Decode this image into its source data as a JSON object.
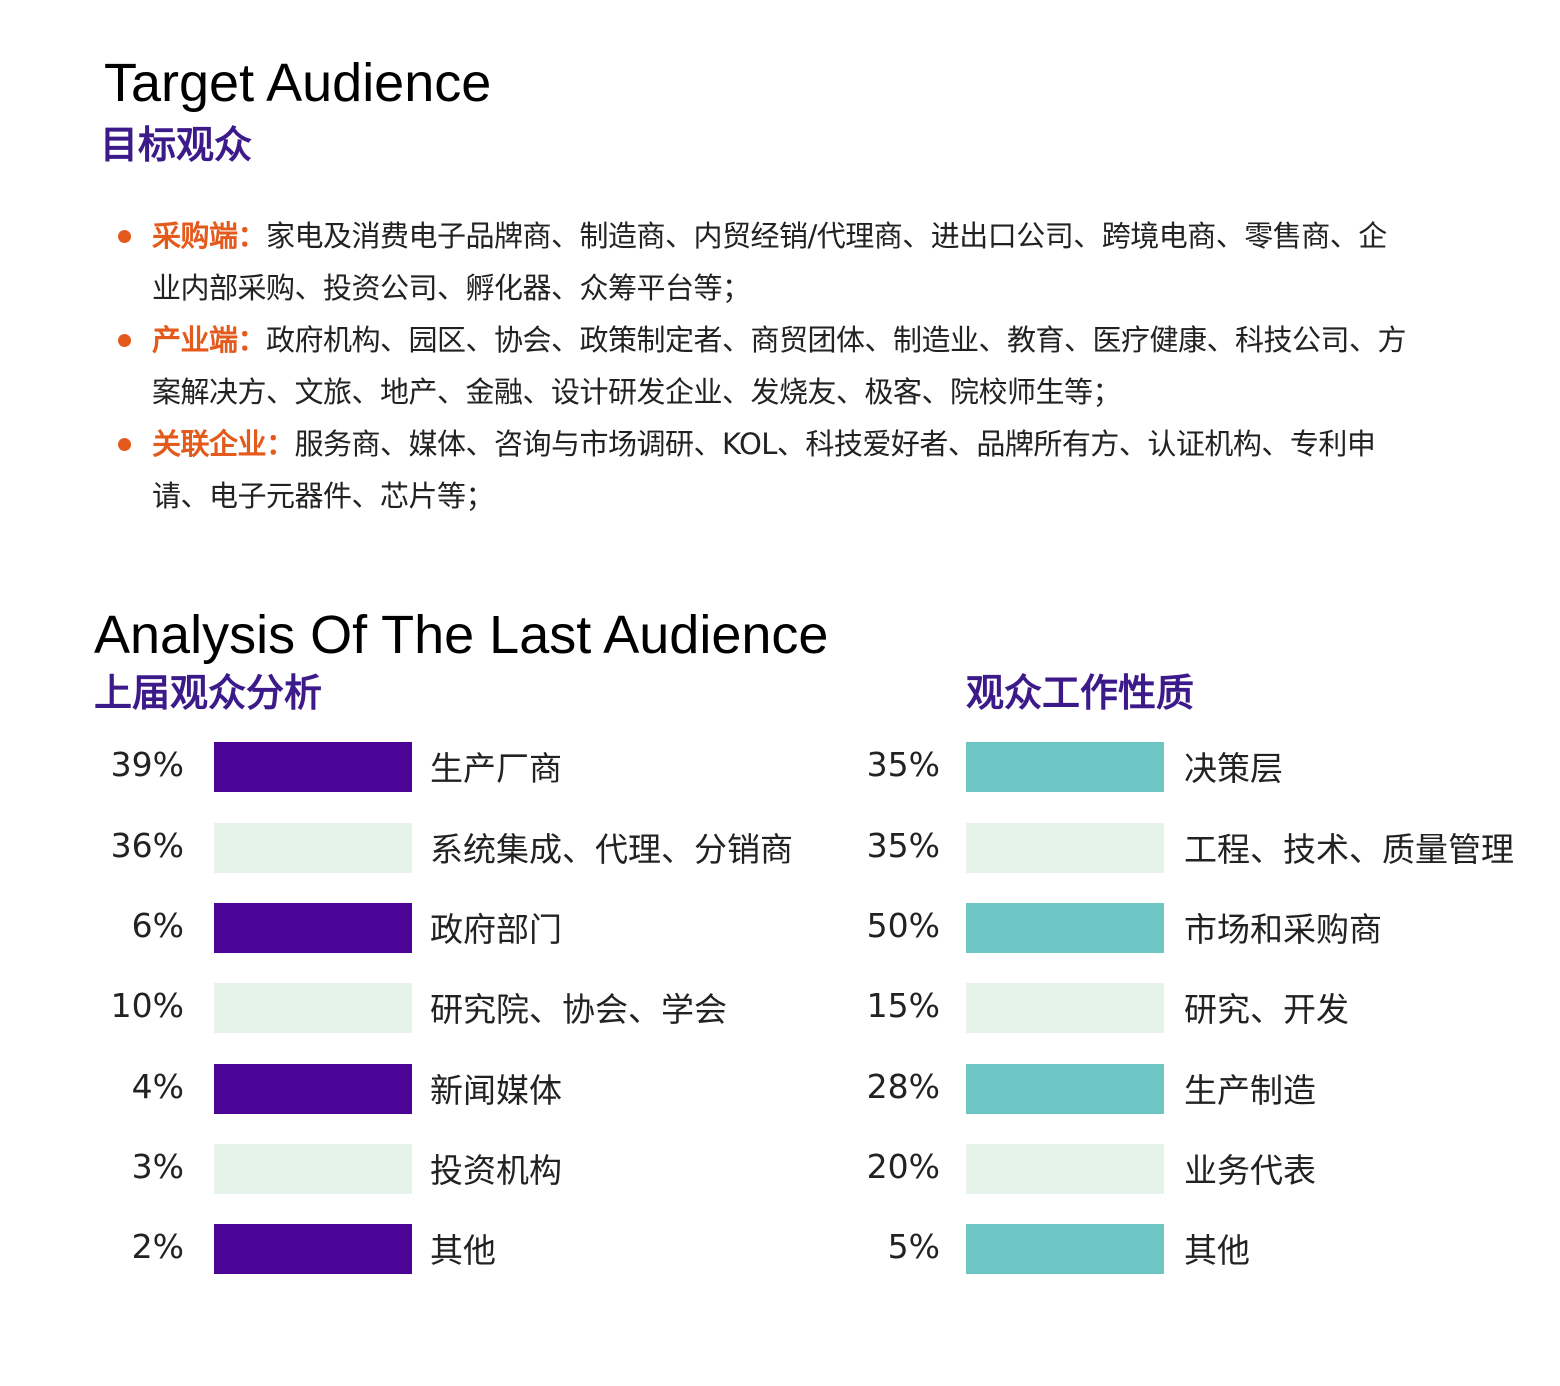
{
  "header": {
    "title_en": "Target Audience",
    "title_cn": "目标观众"
  },
  "colors": {
    "title_cn": "#3d1a8a",
    "bullet_accent": "#e45a1c",
    "bar_purple": "#4a0596",
    "bar_teal": "#6ec6c4",
    "bar_light": "#e6f3ea"
  },
  "bullets": [
    {
      "key": "采购端：",
      "text": "家电及消费电子品牌商、制造商、内贸经销/代理商、进出口公司、跨境电商、零售商、企业内部采购、投资公司、孵化器、众筹平台等；"
    },
    {
      "key": "产业端：",
      "text": "政府机构、园区、协会、政策制定者、商贸团体、制造业、教育、医疗健康、科技公司、方案解决方、文旅、地产、金融、设计研发企业、发烧友、极客、院校师生等；"
    },
    {
      "key": "关联企业：",
      "text": "服务商、媒体、咨询与市场调研、KOL、科技爱好者、品牌所有方、认证机构、专利申请、电子元器件、芯片等；"
    }
  ],
  "analysis": {
    "title_en": "Analysis Of The Last Audience",
    "left_title": "上届观众分析",
    "right_title": "观众工作性质",
    "left_rows": [
      {
        "pct": "39%",
        "label": "生产厂商",
        "style": "purple"
      },
      {
        "pct": "36%",
        "label": "系统集成、代理、分销商",
        "style": "light"
      },
      {
        "pct": "6%",
        "label": "政府部门",
        "style": "purple"
      },
      {
        "pct": "10%",
        "label": "研究院、协会、学会",
        "style": "light"
      },
      {
        "pct": "4%",
        "label": "新闻媒体",
        "style": "purple"
      },
      {
        "pct": "3%",
        "label": "投资机构",
        "style": "light"
      },
      {
        "pct": "2%",
        "label": "其他",
        "style": "purple"
      }
    ],
    "right_rows": [
      {
        "pct": "35%",
        "label": "决策层",
        "style": "teal"
      },
      {
        "pct": "35%",
        "label": "工程、技术、质量管理",
        "style": "light"
      },
      {
        "pct": "50%",
        "label": "市场和采购商",
        "style": "teal"
      },
      {
        "pct": "15%",
        "label": "研究、开发",
        "style": "light"
      },
      {
        "pct": "28%",
        "label": "生产制造",
        "style": "teal"
      },
      {
        "pct": "20%",
        "label": "业务代表",
        "style": "light"
      },
      {
        "pct": "5%",
        "label": "其他",
        "style": "teal"
      }
    ]
  }
}
